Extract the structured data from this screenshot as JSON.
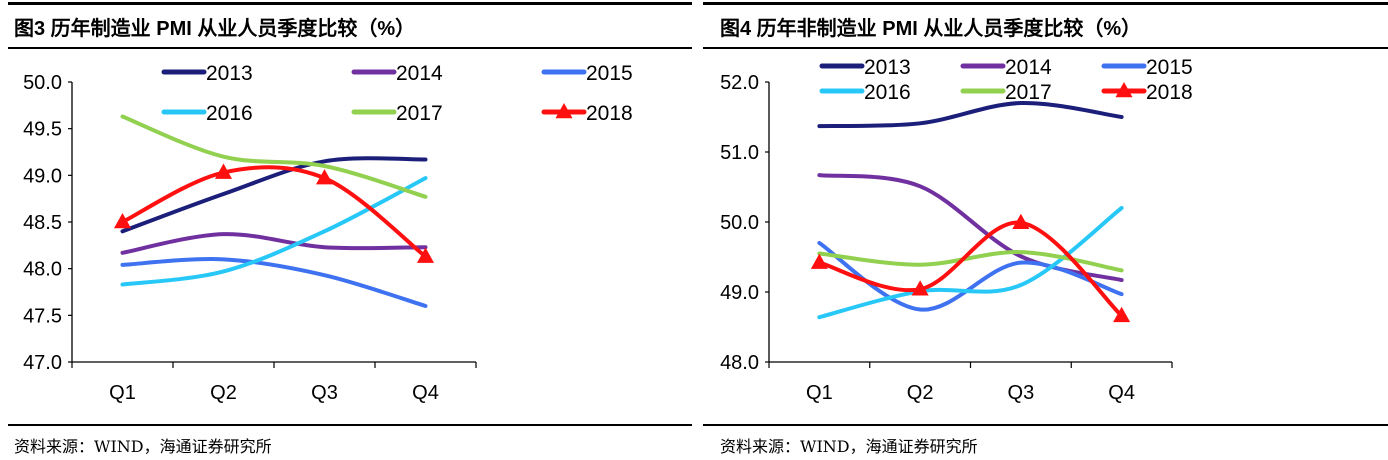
{
  "chart_data": [
    {
      "type": "line",
      "title": "图3  历年制造业 PMI 从业人员季度比较（%）",
      "source": "资料来源：WIND，海通证券研究所",
      "categories": [
        "Q1",
        "Q2",
        "Q3",
        "Q4"
      ],
      "ylim": [
        47.0,
        50.0
      ],
      "yticks": [
        "50.0",
        "49.5",
        "49.0",
        "48.5",
        "48.0",
        "47.5",
        "47.0"
      ],
      "grid": false,
      "legend": "top",
      "series": [
        {
          "name": "2013",
          "color": "#1b1f7a",
          "values": [
            48.4,
            48.8,
            49.15,
            49.17
          ]
        },
        {
          "name": "2014",
          "color": "#7030a0",
          "values": [
            48.17,
            48.37,
            48.23,
            48.23
          ]
        },
        {
          "name": "2015",
          "color": "#3f72f0",
          "values": [
            48.04,
            48.1,
            47.93,
            47.6
          ]
        },
        {
          "name": "2016",
          "color": "#27c8f8",
          "values": [
            47.83,
            47.97,
            48.4,
            48.97
          ]
        },
        {
          "name": "2017",
          "color": "#92d050",
          "values": [
            49.63,
            49.2,
            49.1,
            48.77
          ]
        },
        {
          "name": "2018",
          "color": "#ff1010",
          "marker": "triangle",
          "values": [
            48.5,
            49.03,
            48.97,
            48.13
          ]
        }
      ]
    },
    {
      "type": "line",
      "title": "图4  历年非制造业 PMI 从业人员季度比较（%）",
      "source": "资料来源：WIND，海通证券研究所",
      "categories": [
        "Q1",
        "Q2",
        "Q3",
        "Q4"
      ],
      "ylim": [
        48.0,
        52.0
      ],
      "yticks": [
        "52.0",
        "51.0",
        "50.0",
        "49.0",
        "48.0"
      ],
      "grid": false,
      "legend": "top",
      "series": [
        {
          "name": "2013",
          "color": "#1b1f7a",
          "values": [
            51.37,
            51.41,
            51.7,
            51.5
          ]
        },
        {
          "name": "2014",
          "color": "#7030a0",
          "values": [
            50.67,
            50.51,
            49.51,
            49.17
          ]
        },
        {
          "name": "2015",
          "color": "#3f72f0",
          "values": [
            49.7,
            48.75,
            49.42,
            48.97
          ]
        },
        {
          "name": "2016",
          "color": "#27c8f8",
          "values": [
            48.64,
            49.01,
            49.1,
            50.2
          ]
        },
        {
          "name": "2017",
          "color": "#92d050",
          "values": [
            49.55,
            49.39,
            49.57,
            49.31
          ]
        },
        {
          "name": "2018",
          "color": "#ff1010",
          "marker": "triangle",
          "values": [
            49.42,
            49.04,
            49.99,
            48.66
          ]
        }
      ]
    }
  ]
}
